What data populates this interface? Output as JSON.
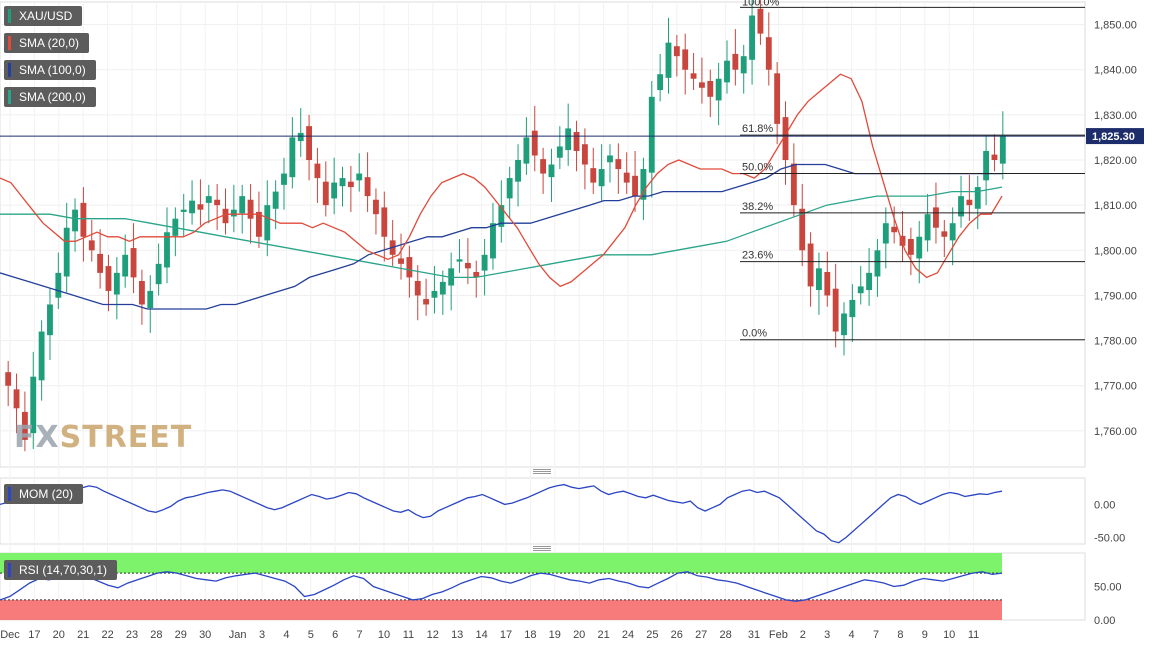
{
  "legend": {
    "symbol": "XAU/USD",
    "sma20": "SMA (20,0)",
    "sma100": "SMA (100,0)",
    "sma200": "SMA (200,0)",
    "mom": "MOM (20)",
    "rsi": "RSI (14,70,30,1)"
  },
  "watermark": {
    "part1": "FX",
    "part2": "STREET"
  },
  "colors": {
    "up": "#1e9e7a",
    "down": "#c8463e",
    "sma20": "#e04a3a",
    "sma100": "#233f99",
    "sma200": "#2aa58a",
    "mom": "#2b45c4",
    "rsi": "#2b45c4",
    "rsi_overbought": "#7cf36b",
    "rsi_oversold": "#f77b7b",
    "price_line": "#1d2d6b"
  },
  "chart_data": [
    {
      "type": "candlestick",
      "symbol": "XAU/USD",
      "ylim": [
        1752,
        1855
      ],
      "y_ticks": [
        1760,
        1770,
        1780,
        1790,
        1800,
        1810,
        1820,
        1830,
        1840,
        1850
      ],
      "y_tick_labels": [
        "1,760.00",
        "1,770.00",
        "1,780.00",
        "1,790.00",
        "1,800.00",
        "1,810.00",
        "1,820.00",
        "1,830.00",
        "1,840.00",
        "1,850.00"
      ],
      "x_labels": [
        "Dec",
        "17",
        "20",
        "21",
        "22",
        "23",
        "28",
        "29",
        "30",
        "Jan",
        "3",
        "4",
        "5",
        "6",
        "7",
        "10",
        "11",
        "12",
        "13",
        "14",
        "17",
        "18",
        "19",
        "20",
        "21",
        "24",
        "25",
        "26",
        "27",
        "28",
        "31",
        "Feb",
        "2",
        "3",
        "4",
        "7",
        "8",
        "9",
        "10",
        "11"
      ],
      "current_price": 1825.3,
      "current_price_label": "1,825.30",
      "fibonacci": {
        "top_label": "100.0%",
        "levels": [
          {
            "label": "61.8%",
            "value": 1825.5
          },
          {
            "label": "50.0%",
            "value": 1817.0
          },
          {
            "label": "38.2%",
            "value": 1808.3
          },
          {
            "label": "23.6%",
            "value": 1797.5
          },
          {
            "label": "0.0%",
            "value": 1780.2
          }
        ],
        "high": 1853.8
      },
      "close_series": [
        1770,
        1765,
        1758,
        1772,
        1782,
        1788,
        1795,
        1805,
        1809,
        1803,
        1800,
        1795,
        1791,
        1795,
        1799,
        1794,
        1788,
        1791,
        1797,
        1804,
        1807,
        1809,
        1811,
        1809,
        1812,
        1810,
        1806,
        1809,
        1812,
        1807,
        1803,
        1810,
        1813,
        1817,
        1825,
        1826,
        1820,
        1816,
        1810,
        1815,
        1816,
        1814,
        1817,
        1812,
        1808,
        1803,
        1799,
        1797,
        1794,
        1790,
        1788,
        1791,
        1793,
        1796,
        1798,
        1796,
        1794,
        1799,
        1806,
        1810,
        1816,
        1820,
        1825,
        1821,
        1817,
        1819,
        1823,
        1827,
        1822,
        1819,
        1815,
        1818,
        1821,
        1818,
        1815,
        1812,
        1818,
        1834,
        1839,
        1846,
        1843,
        1840,
        1838,
        1836,
        1834,
        1838,
        1842,
        1840,
        1843,
        1852,
        1848,
        1840,
        1828,
        1820,
        1810,
        1800,
        1792,
        1796,
        1790,
        1782,
        1786,
        1789,
        1792,
        1795,
        1800,
        1806,
        1804,
        1801,
        1799,
        1803,
        1808,
        1805,
        1803,
        1806,
        1812,
        1810,
        1814,
        1822,
        1820,
        1825.3
      ],
      "sma20": [
        1816,
        1815,
        1812,
        1809,
        1806,
        1804,
        1802,
        1802,
        1803,
        1804,
        1803,
        1803,
        1802,
        1803,
        1803,
        1803,
        1803,
        1803,
        1804,
        1806,
        1807,
        1808,
        1808,
        1808,
        1808,
        1807,
        1806,
        1806,
        1806,
        1805,
        1806,
        1805,
        1804,
        1802,
        1800,
        1799,
        1798,
        1799,
        1803,
        1808,
        1812,
        1815,
        1816,
        1817,
        1816,
        1814,
        1811,
        1808,
        1805,
        1801,
        1797,
        1794,
        1792,
        1793,
        1795,
        1797,
        1799,
        1802,
        1805,
        1810,
        1814,
        1817,
        1819,
        1820,
        1819,
        1818,
        1818,
        1818,
        1817,
        1817,
        1816,
        1818,
        1822,
        1826,
        1830,
        1833,
        1835,
        1837,
        1839,
        1838,
        1833,
        1823,
        1815,
        1807,
        1800,
        1796,
        1794,
        1795,
        1799,
        1803,
        1806,
        1808,
        1808,
        1812
      ],
      "sma100": [
        1795,
        1794,
        1793,
        1792,
        1791,
        1790,
        1789,
        1788,
        1788,
        1788,
        1787,
        1787,
        1787,
        1787,
        1787,
        1788,
        1788,
        1789,
        1790,
        1791,
        1792,
        1794,
        1795,
        1796,
        1797,
        1799,
        1800,
        1801,
        1802,
        1803,
        1803,
        1804,
        1805,
        1805,
        1806,
        1806,
        1806,
        1807,
        1808,
        1809,
        1810,
        1811,
        1811,
        1812,
        1812,
        1813,
        1813,
        1813,
        1813,
        1813,
        1814,
        1815,
        1816,
        1818,
        1819,
        1819,
        1819,
        1818,
        1817,
        1817,
        1817,
        1817,
        1817,
        1817,
        1817,
        1817,
        1817,
        1817,
        1817
      ],
      "sma200": [
        1808,
        1808,
        1808,
        1807,
        1807,
        1807,
        1806,
        1805,
        1804,
        1803,
        1802,
        1801,
        1800,
        1799,
        1798,
        1797,
        1796,
        1795,
        1794,
        1794,
        1795,
        1796,
        1797,
        1798,
        1799,
        1799,
        1799,
        1800,
        1801,
        1802,
        1804,
        1806,
        1808,
        1810,
        1811,
        1812,
        1812,
        1812,
        1813,
        1813,
        1814
      ]
    },
    {
      "type": "line",
      "name": "MOM (20)",
      "ylim": [
        -60,
        40
      ],
      "y_ticks": [
        0,
        -50
      ],
      "y_tick_labels": [
        "0.00",
        "-50.00"
      ],
      "values": [
        0,
        3,
        2,
        5,
        8,
        10,
        14,
        12,
        15,
        20,
        22,
        25,
        28,
        26,
        20,
        15,
        10,
        5,
        0,
        -5,
        -10,
        -12,
        -8,
        -3,
        5,
        10,
        12,
        15,
        18,
        20,
        22,
        20,
        15,
        10,
        5,
        0,
        -5,
        -8,
        -5,
        0,
        5,
        10,
        15,
        12,
        8,
        10,
        14,
        18,
        16,
        10,
        5,
        0,
        -5,
        -10,
        -12,
        -8,
        -15,
        -20,
        -18,
        -10,
        -5,
        0,
        5,
        10,
        12,
        15,
        10,
        5,
        0,
        2,
        6,
        10,
        15,
        20,
        25,
        28,
        30,
        26,
        24,
        26,
        28,
        20,
        15,
        18,
        20,
        16,
        12,
        10,
        14,
        10,
        6,
        4,
        2,
        5,
        -5,
        -10,
        -5,
        0,
        10,
        15,
        20,
        22,
        18,
        20,
        15,
        10,
        0,
        -10,
        -20,
        -30,
        -40,
        -45,
        -55,
        -58,
        -50,
        -40,
        -30,
        -20,
        -10,
        0,
        10,
        15,
        12,
        5,
        0,
        5,
        10,
        15,
        18,
        16,
        12,
        14,
        16,
        15,
        18,
        20
      ]
    },
    {
      "type": "line",
      "name": "RSI (14,70,30,1)",
      "ylim": [
        0,
        100
      ],
      "y_ticks": [
        0,
        50
      ],
      "y_tick_labels": [
        "0.00",
        "50.00"
      ],
      "overbought": 70,
      "oversold": 30,
      "values": [
        30,
        35,
        45,
        55,
        62,
        60,
        65,
        70,
        68,
        64,
        58,
        52,
        48,
        55,
        60,
        65,
        70,
        72,
        70,
        66,
        62,
        60,
        58,
        63,
        66,
        68,
        70,
        66,
        62,
        58,
        50,
        35,
        38,
        45,
        52,
        60,
        66,
        62,
        50,
        45,
        40,
        35,
        30,
        32,
        38,
        42,
        48,
        55,
        60,
        65,
        63,
        58,
        55,
        60,
        66,
        70,
        68,
        64,
        60,
        58,
        55,
        60,
        62,
        58,
        55,
        50,
        48,
        55,
        62,
        70,
        72,
        66,
        64,
        60,
        58,
        55,
        50,
        45,
        40,
        35,
        30,
        28,
        30,
        35,
        40,
        45,
        50,
        55,
        60,
        58,
        55,
        50,
        52,
        58,
        62,
        60,
        58,
        62,
        66,
        70,
        72,
        68,
        70
      ]
    }
  ]
}
